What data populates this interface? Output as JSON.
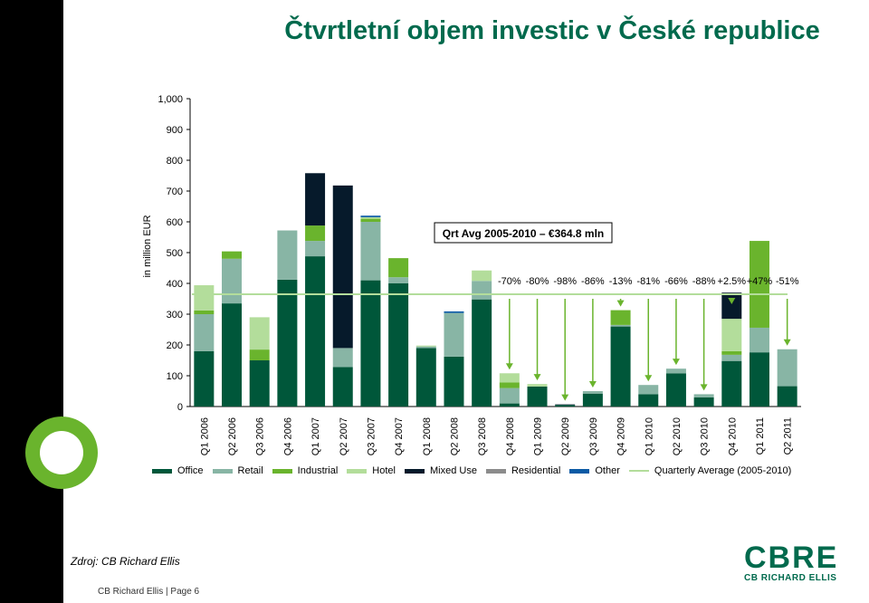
{
  "title": "Čtvrtletní objem investic v České republice",
  "source": "Zdroj: CB Richard Ellis",
  "footer": "CB Richard Ellis | Page 6",
  "logo": {
    "text": "CBRE",
    "subtext": "CB RICHARD ELLIS"
  },
  "chart_data": {
    "type": "bar",
    "stacked": true,
    "ylabel": "in million EUR",
    "ylim": [
      0,
      1000
    ],
    "yticks": [
      "0",
      "100",
      "200",
      "300",
      "400",
      "500",
      "600",
      "700",
      "800",
      "900",
      "1,000"
    ],
    "grid": false,
    "legend_position": "bottom",
    "categories": [
      "Q1 2006",
      "Q2 2006",
      "Q3 2006",
      "Q4 2006",
      "Q1 2007",
      "Q2 2007",
      "Q3 2007",
      "Q4 2007",
      "Q1 2008",
      "Q2 2008",
      "Q3 2008",
      "Q4 2008",
      "Q1 2009",
      "Q2 2009",
      "Q3 2009",
      "Q4 2009",
      "Q1 2010",
      "Q2 2010",
      "Q3 2010",
      "Q4 2010",
      "Q1 2011",
      "Q2 2011"
    ],
    "series": [
      {
        "name": "Office",
        "color": "#00573a",
        "values": [
          180,
          335,
          150,
          412,
          488,
          128,
          410,
          400,
          190,
          162,
          348,
          10,
          65,
          5,
          42,
          260,
          40,
          108,
          30,
          148,
          176,
          66
        ]
      },
      {
        "name": "Retail",
        "color": "#88b5a5",
        "values": [
          120,
          145,
          0,
          160,
          50,
          62,
          190,
          20,
          5,
          142,
          60,
          50,
          0,
          0,
          8,
          5,
          30,
          15,
          10,
          20,
          80,
          120
        ]
      },
      {
        "name": "Industrial",
        "color": "#6ab42d",
        "values": [
          12,
          24,
          35,
          0,
          50,
          0,
          10,
          62,
          0,
          0,
          0,
          18,
          0,
          0,
          0,
          48,
          0,
          0,
          0,
          12,
          282,
          0
        ]
      },
      {
        "name": "Hotel",
        "color": "#b3dd9b",
        "values": [
          82,
          0,
          105,
          0,
          0,
          0,
          5,
          0,
          3,
          0,
          34,
          30,
          8,
          0,
          0,
          0,
          0,
          0,
          0,
          105,
          0,
          0
        ]
      },
      {
        "name": "Mixed Use",
        "color": "#061a2b",
        "values": [
          0,
          0,
          0,
          0,
          170,
          528,
          0,
          0,
          0,
          0,
          0,
          0,
          0,
          2,
          0,
          0,
          0,
          0,
          0,
          85,
          0,
          0
        ]
      },
      {
        "name": "Residential",
        "color": "#8c8c8c",
        "values": [
          0,
          0,
          0,
          0,
          0,
          0,
          0,
          0,
          0,
          0,
          0,
          0,
          0,
          0,
          0,
          0,
          0,
          0,
          0,
          0,
          0,
          0
        ]
      },
      {
        "name": "Other",
        "color": "#0b5aa5",
        "values": [
          0,
          0,
          0,
          0,
          0,
          0,
          5,
          0,
          0,
          5,
          0,
          0,
          0,
          0,
          0,
          0,
          0,
          0,
          0,
          0,
          0,
          0
        ]
      }
    ],
    "average_line": {
      "name": "Quarterly Average (2005-2010)",
      "value": 364.8,
      "color": "#b3dd9b"
    },
    "average_label": "Qrt Avg 2005-2010 – €364.8 mln",
    "change_labels": [
      "-70%",
      "-80%",
      "-98%",
      "-86%",
      "-13%",
      "-81%",
      "-66%",
      "-88%",
      "+2.5%",
      "+47%",
      "-51%"
    ],
    "change_start_index": 11
  }
}
